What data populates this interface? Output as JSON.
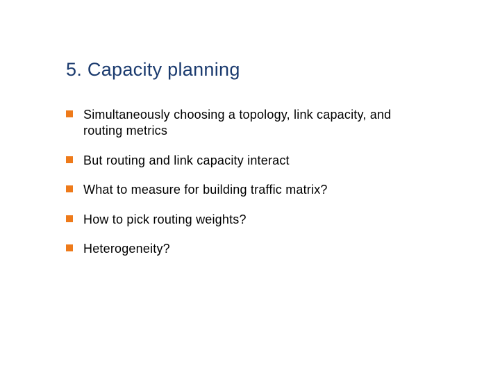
{
  "slide": {
    "title": "5. Capacity planning",
    "title_color": "#1a3a6e",
    "title_fontsize": 27,
    "background_color": "#ffffff",
    "bullet_color": "#ee7a1a",
    "bullet_size": 10,
    "text_color": "#000000",
    "text_fontsize": 18,
    "bullets": [
      "Simultaneously choosing a topology, link capacity, and routing metrics",
      "But routing and link capacity interact",
      "What to measure for building traffic matrix?",
      "How to pick routing weights?",
      "Heterogeneity?"
    ]
  }
}
